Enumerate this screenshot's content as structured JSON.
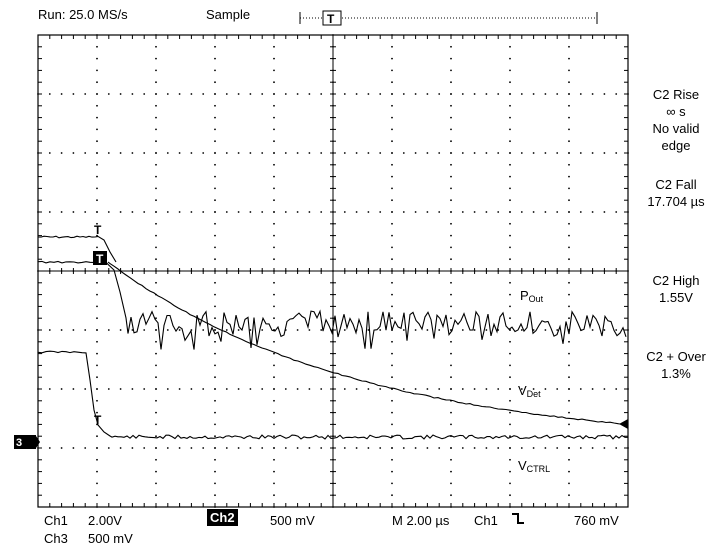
{
  "header": {
    "run": "Run: 25.0 MS/s",
    "mode": "Sample",
    "trigger_marker": "T"
  },
  "measurements": [
    {
      "lines": [
        "C2 Rise",
        "∞ s",
        "No valid",
        "edge"
      ]
    },
    {
      "lines": [
        "C2 Fall",
        "17.704 µs"
      ]
    },
    {
      "lines": [
        "C2 High",
        "1.55V"
      ]
    },
    {
      "lines": [
        "C2 + Over",
        "1.3%"
      ]
    }
  ],
  "trace_labels": {
    "pout": {
      "main": "P",
      "sub": "Out"
    },
    "vdet": {
      "main": "V",
      "sub": "Det"
    },
    "vctrl": {
      "main": "V",
      "sub": "CTRL"
    }
  },
  "footer": {
    "ch1_label": "Ch1",
    "ch1_scale": "2.00V",
    "ch3_label": "Ch3",
    "ch3_scale": "500 mV",
    "ch2_label": "Ch2",
    "ch2_scale": "500 mV",
    "timebase": "M 2.00 µs",
    "trigger_src": "Ch1",
    "trigger_level": "760 mV"
  },
  "markers": {
    "ground_ref": "3",
    "trig_t": "T"
  },
  "colors": {
    "trace": "#000000",
    "grid": "#000000",
    "background": "#ffffff"
  },
  "graticule": {
    "divisions_x": 10,
    "divisions_y": 8,
    "minor_per_div": 5
  }
}
